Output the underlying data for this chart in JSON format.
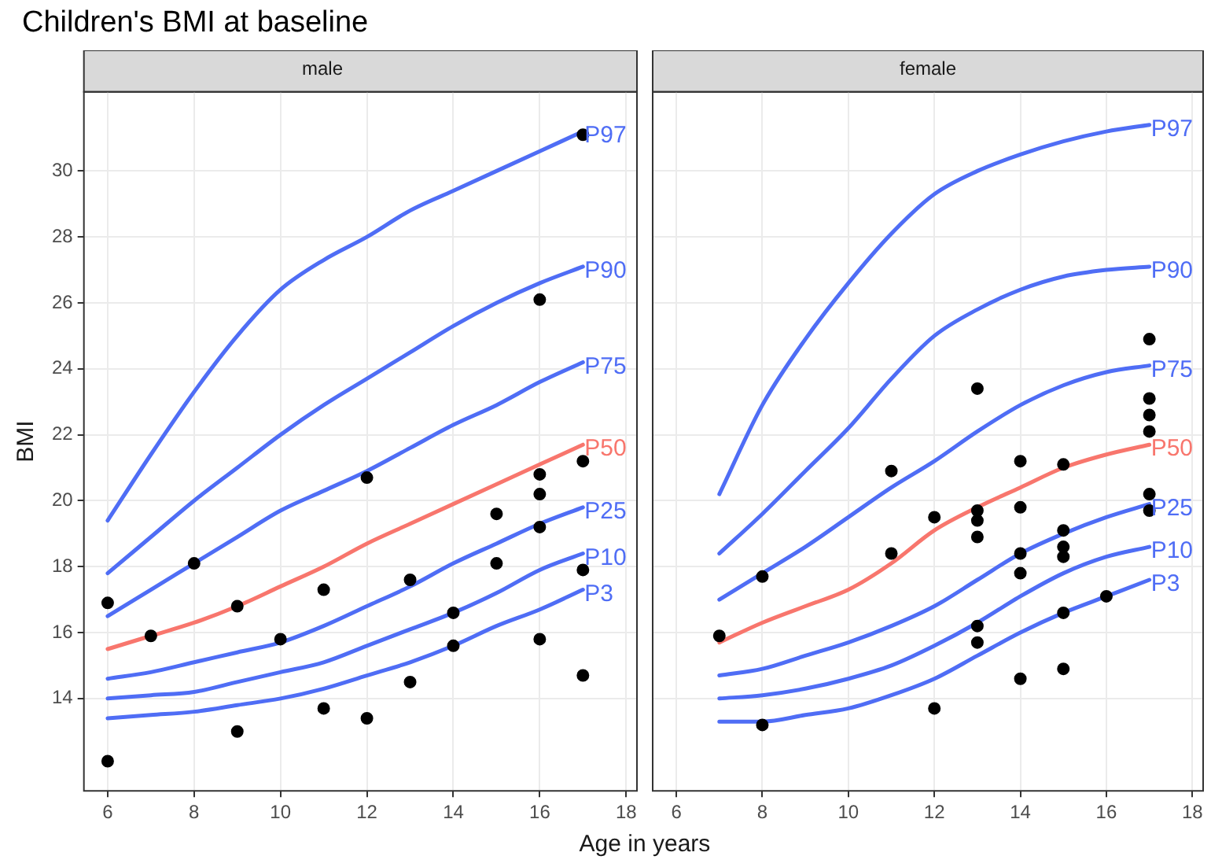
{
  "chart_data": [
    {
      "type": "scatter",
      "title": "Children's BMI at baseline",
      "subtitle": "male",
      "xlabel": "Age in years",
      "ylabel": "BMI",
      "xlim": [
        5.45,
        18.25
      ],
      "xticks": [
        6,
        8,
        10,
        12,
        14,
        16,
        18
      ],
      "ylim": [
        11.2,
        32.4
      ],
      "yticks": [
        14,
        16,
        18,
        20,
        22,
        24,
        26,
        28,
        30
      ],
      "grid": true,
      "legend": false,
      "series": [
        {
          "marker": "circle",
          "color": "#000000",
          "x": [
            6,
            6,
            7,
            8,
            9,
            9,
            10,
            11,
            11,
            12,
            12,
            13,
            13,
            14,
            14,
            15,
            15,
            16,
            16,
            16,
            16,
            16,
            17,
            17,
            17,
            17
          ],
          "values": [
            16.9,
            12.1,
            15.9,
            18.1,
            16.8,
            13.0,
            15.8,
            17.3,
            13.7,
            20.7,
            13.4,
            17.6,
            14.5,
            16.6,
            15.6,
            19.6,
            18.1,
            26.1,
            20.8,
            20.2,
            19.2,
            15.8,
            31.1,
            21.2,
            17.9,
            14.7
          ]
        },
        {
          "type": "line",
          "name": "P97",
          "color": "#4f6df5",
          "x": [
            6,
            7,
            8,
            9,
            10,
            11,
            12,
            13,
            14,
            15,
            16,
            17
          ],
          "values": [
            19.4,
            21.4,
            23.3,
            25.0,
            26.4,
            27.3,
            28.0,
            28.8,
            29.4,
            30.0,
            30.6,
            31.2
          ]
        },
        {
          "type": "line",
          "name": "P90",
          "color": "#4f6df5",
          "x": [
            6,
            7,
            8,
            9,
            10,
            11,
            12,
            13,
            14,
            15,
            16,
            17
          ],
          "values": [
            17.8,
            18.9,
            20.0,
            21.0,
            22.0,
            22.9,
            23.7,
            24.5,
            25.3,
            26.0,
            26.6,
            27.1
          ]
        },
        {
          "type": "line",
          "name": "P75",
          "color": "#4f6df5",
          "x": [
            6,
            7,
            8,
            9,
            10,
            11,
            12,
            13,
            14,
            15,
            16,
            17
          ],
          "values": [
            16.5,
            17.3,
            18.1,
            18.9,
            19.7,
            20.3,
            20.9,
            21.6,
            22.3,
            22.9,
            23.6,
            24.2
          ]
        },
        {
          "type": "line",
          "name": "P50",
          "color": "#f8766d",
          "x": [
            6,
            7,
            8,
            9,
            10,
            11,
            12,
            13,
            14,
            15,
            16,
            17
          ],
          "values": [
            15.5,
            15.9,
            16.3,
            16.8,
            17.4,
            18.0,
            18.7,
            19.3,
            19.9,
            20.5,
            21.1,
            21.7
          ]
        },
        {
          "type": "line",
          "name": "P25",
          "color": "#4f6df5",
          "x": [
            6,
            7,
            8,
            9,
            10,
            11,
            12,
            13,
            14,
            15,
            16,
            17
          ],
          "values": [
            14.6,
            14.8,
            15.1,
            15.4,
            15.7,
            16.2,
            16.8,
            17.4,
            18.1,
            18.7,
            19.3,
            19.8
          ]
        },
        {
          "type": "line",
          "name": "P10",
          "color": "#4f6df5",
          "x": [
            6,
            7,
            8,
            9,
            10,
            11,
            12,
            13,
            14,
            15,
            16,
            17
          ],
          "values": [
            14.0,
            14.1,
            14.2,
            14.5,
            14.8,
            15.1,
            15.6,
            16.1,
            16.6,
            17.2,
            17.9,
            18.4
          ]
        },
        {
          "type": "line",
          "name": "P3",
          "color": "#4f6df5",
          "x": [
            6,
            7,
            8,
            9,
            10,
            11,
            12,
            13,
            14,
            15,
            16,
            17
          ],
          "values": [
            13.4,
            13.5,
            13.6,
            13.8,
            14.0,
            14.3,
            14.7,
            15.1,
            15.6,
            16.2,
            16.7,
            17.3
          ]
        }
      ]
    },
    {
      "type": "scatter",
      "subtitle": "female",
      "xlim": [
        5.45,
        18.25
      ],
      "xticks": [
        6,
        8,
        10,
        12,
        14,
        16,
        18
      ],
      "ylim": [
        11.2,
        32.4
      ],
      "yticks": [
        14,
        16,
        18,
        20,
        22,
        24,
        26,
        28,
        30
      ],
      "tick_labels": "x",
      "grid": true,
      "legend": false,
      "series": [
        {
          "marker": "circle",
          "color": "#000000",
          "x": [
            7,
            8,
            8,
            11,
            11,
            12,
            12,
            13,
            13,
            13,
            13,
            13,
            13,
            14,
            14,
            14,
            14,
            14,
            15,
            15,
            15,
            15,
            15,
            15,
            16,
            17,
            17,
            17,
            17,
            17,
            17
          ],
          "values": [
            15.9,
            17.7,
            13.2,
            20.9,
            18.4,
            19.5,
            13.7,
            23.4,
            19.7,
            19.4,
            18.9,
            16.2,
            15.7,
            21.2,
            19.8,
            18.4,
            17.8,
            14.6,
            21.1,
            19.1,
            18.6,
            18.3,
            16.6,
            14.9,
            17.1,
            24.9,
            23.1,
            22.6,
            22.1,
            20.2,
            19.7
          ]
        },
        {
          "type": "line",
          "name": "P97",
          "color": "#4f6df5",
          "x": [
            7,
            8,
            9,
            10,
            11,
            12,
            13,
            14,
            15,
            16,
            17
          ],
          "values": [
            20.2,
            22.9,
            24.9,
            26.6,
            28.1,
            29.3,
            30.0,
            30.5,
            30.9,
            31.2,
            31.4
          ]
        },
        {
          "type": "line",
          "name": "P90",
          "color": "#4f6df5",
          "x": [
            7,
            8,
            9,
            10,
            11,
            12,
            13,
            14,
            15,
            16,
            17
          ],
          "values": [
            18.4,
            19.6,
            20.9,
            22.2,
            23.7,
            25.0,
            25.8,
            26.4,
            26.8,
            27.0,
            27.1
          ]
        },
        {
          "type": "line",
          "name": "P75",
          "color": "#4f6df5",
          "x": [
            7,
            8,
            9,
            10,
            11,
            12,
            13,
            14,
            15,
            16,
            17
          ],
          "values": [
            17.0,
            17.8,
            18.6,
            19.5,
            20.4,
            21.2,
            22.1,
            22.9,
            23.5,
            23.9,
            24.1
          ]
        },
        {
          "type": "line",
          "name": "P50",
          "color": "#f8766d",
          "x": [
            7,
            8,
            9,
            10,
            11,
            12,
            13,
            14,
            15,
            16,
            17
          ],
          "values": [
            15.7,
            16.3,
            16.8,
            17.3,
            18.1,
            19.1,
            19.8,
            20.4,
            21.0,
            21.4,
            21.7
          ]
        },
        {
          "type": "line",
          "name": "P25",
          "color": "#4f6df5",
          "x": [
            7,
            8,
            9,
            10,
            11,
            12,
            13,
            14,
            15,
            16,
            17
          ],
          "values": [
            14.7,
            14.9,
            15.3,
            15.7,
            16.2,
            16.8,
            17.6,
            18.4,
            19.0,
            19.5,
            19.9
          ]
        },
        {
          "type": "line",
          "name": "P10",
          "color": "#4f6df5",
          "x": [
            7,
            8,
            9,
            10,
            11,
            12,
            13,
            14,
            15,
            16,
            17
          ],
          "values": [
            14.0,
            14.1,
            14.3,
            14.6,
            15.0,
            15.6,
            16.3,
            17.1,
            17.8,
            18.3,
            18.6
          ]
        },
        {
          "type": "line",
          "name": "P3",
          "color": "#4f6df5",
          "x": [
            7,
            8,
            9,
            10,
            11,
            12,
            13,
            14,
            15,
            16,
            17
          ],
          "values": [
            13.3,
            13.3,
            13.5,
            13.7,
            14.1,
            14.6,
            15.3,
            16.0,
            16.6,
            17.1,
            17.6
          ]
        }
      ]
    }
  ]
}
